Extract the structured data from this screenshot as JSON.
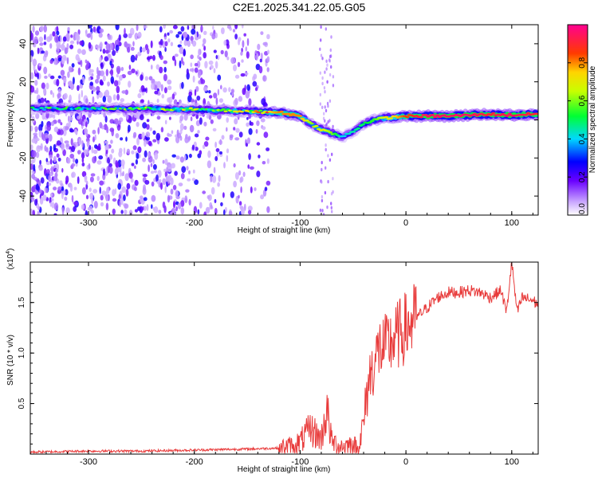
{
  "title": "C2E1.2025.341.22.05.G05",
  "chart_data": [
    {
      "type": "heatmap",
      "name": "spectrogram",
      "xlabel": "Height of straight line (km)",
      "ylabel": "Frequency (Hz)",
      "xlim": [
        -355,
        125
      ],
      "ylim": [
        -50,
        50
      ],
      "xticks": [
        -300,
        -200,
        -100,
        0,
        100
      ],
      "yticks": [
        -40,
        -20,
        0,
        20,
        40
      ],
      "colorbar": {
        "label": "Normalized spectral amplitude",
        "range": [
          0,
          1
        ],
        "ticks": [
          0.0,
          0.2,
          0.4,
          0.6,
          0.8
        ],
        "tick_labels": [
          "0.0",
          "0.2",
          "0.4",
          "0.6",
          "0.8"
        ],
        "stops": [
          "#ffffff",
          "#7a00ff",
          "#0000ff",
          "#00e5ff",
          "#00ff00",
          "#ffff00",
          "#ff3300",
          "#ff0090"
        ]
      },
      "ridge": {
        "x": [
          -350,
          -300,
          -250,
          -200,
          -150,
          -120,
          -100,
          -90,
          -80,
          -70,
          -60,
          -50,
          -40,
          -30,
          -20,
          -10,
          0,
          20,
          40,
          60,
          80,
          100,
          120
        ],
        "freq": [
          6,
          6,
          6,
          5.5,
          4.5,
          4,
          2,
          -2,
          -5,
          -7,
          -9,
          -6,
          -2,
          0,
          1,
          1.5,
          2,
          2,
          2,
          2.5,
          3,
          2.5,
          3
        ],
        "amp": [
          0.45,
          0.45,
          0.5,
          0.55,
          0.6,
          0.8,
          0.8,
          0.6,
          0.7,
          0.6,
          0.4,
          0.45,
          0.5,
          0.55,
          0.7,
          0.75,
          0.85,
          0.95,
          0.95,
          0.95,
          0.9,
          0.95,
          0.9
        ]
      },
      "noise_region_x": [
        -355,
        -130
      ]
    },
    {
      "type": "line",
      "name": "snr",
      "xlabel": "Height of straight line (km)",
      "ylabel": "SNR (10 * v/v)",
      "exponent_label": "(x10",
      "exponent_power": "4",
      "exponent_close": ")",
      "xlim": [
        -355,
        125
      ],
      "ylim": [
        0,
        1.9
      ],
      "xticks": [
        -300,
        -200,
        -100,
        0,
        100
      ],
      "yticks": [
        0.5,
        1.0,
        1.5
      ],
      "ytick_labels": [
        "0.5",
        "1.0",
        "1.5"
      ],
      "color": "#e83a3a",
      "series": [
        {
          "name": "SNR",
          "x": [
            -355,
            -300,
            -250,
            -200,
            -150,
            -120,
            -110,
            -100,
            -90,
            -80,
            -75,
            -70,
            -60,
            -50,
            -45,
            -40,
            -35,
            -30,
            -25,
            -20,
            -15,
            -10,
            -5,
            0,
            10,
            20,
            30,
            40,
            50,
            60,
            70,
            80,
            90,
            95,
            100,
            105,
            110,
            120,
            125
          ],
          "y": [
            0.02,
            0.03,
            0.03,
            0.04,
            0.05,
            0.06,
            0.08,
            0.12,
            0.25,
            0.15,
            0.45,
            0.12,
            0.08,
            0.1,
            0.05,
            0.3,
            0.75,
            0.9,
            1.05,
            1.05,
            1.1,
            1.15,
            1.2,
            1.25,
            1.35,
            1.45,
            1.55,
            1.6,
            1.6,
            1.62,
            1.6,
            1.55,
            1.62,
            1.4,
            1.9,
            1.4,
            1.55,
            1.52,
            1.48
          ]
        }
      ]
    }
  ]
}
